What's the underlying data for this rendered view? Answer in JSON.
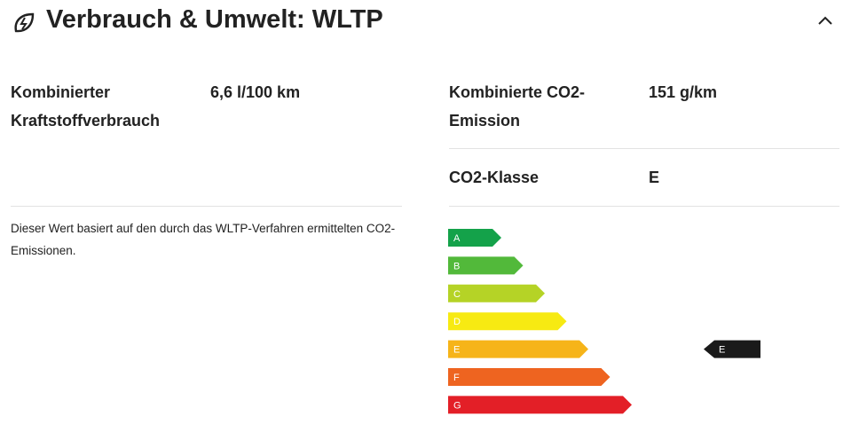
{
  "header": {
    "title": "Verbrauch & Umwelt: WLTP"
  },
  "left": {
    "rows": [
      {
        "label": "Kombinierter Kraftstoffverbrauch",
        "value": "6,6 l/100 km"
      }
    ],
    "note": "Dieser Wert basiert auf den durch das WLTP-Verfahren ermittelten CO2-Emissionen."
  },
  "right": {
    "rows": [
      {
        "label": "Kombinierte CO2-Emission",
        "value": "151 g/km"
      },
      {
        "label": "CO2-Klasse",
        "value": "E"
      }
    ]
  },
  "energy_label": {
    "classes": [
      {
        "letter": "A",
        "color": "#14a24a"
      },
      {
        "letter": "B",
        "color": "#52b93a"
      },
      {
        "letter": "C",
        "color": "#b5d326"
      },
      {
        "letter": "D",
        "color": "#f7ea12"
      },
      {
        "letter": "E",
        "color": "#f6b419"
      },
      {
        "letter": "F",
        "color": "#ee6420"
      },
      {
        "letter": "G",
        "color": "#e31f27"
      }
    ],
    "current": "E"
  }
}
